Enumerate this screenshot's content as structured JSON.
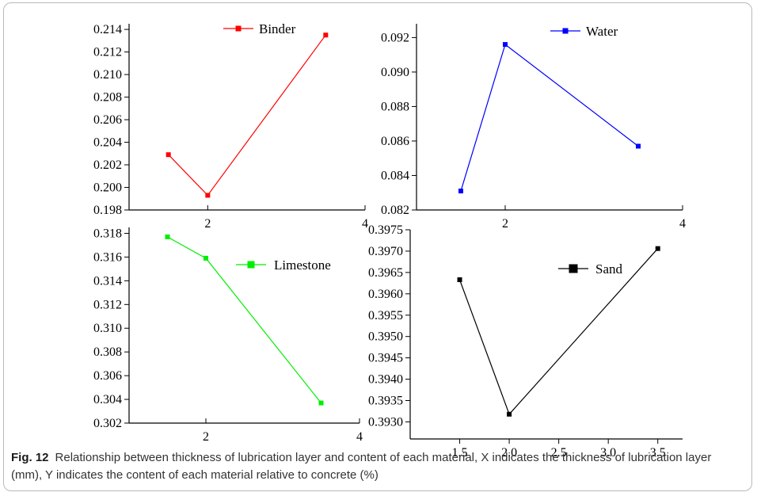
{
  "caption": {
    "label": "Fig. 12",
    "text": "Relationship between thickness of lubrication layer and content of each material, X indicates the thickness of lubrication layer (mm), Y indicates the content of each material relative to concrete (%)"
  },
  "chart_data": [
    {
      "type": "line",
      "title": "",
      "xlabel": "",
      "ylabel": "",
      "color": "#ff0000",
      "xlim": [
        1,
        4
      ],
      "ylim": [
        0.198,
        0.2145
      ],
      "x_ticks": [
        2,
        4
      ],
      "x_tick_labels": [
        "2",
        "4"
      ],
      "y_ticks": [
        0.198,
        0.2,
        0.202,
        0.204,
        0.206,
        0.208,
        0.21,
        0.212,
        0.214
      ],
      "y_tick_labels": [
        "0.198",
        "0.200",
        "0.202",
        "0.204",
        "0.206",
        "0.208",
        "0.210",
        "0.212",
        "0.214"
      ],
      "series": [
        {
          "name": "Binder",
          "x": [
            1.5,
            2.0,
            3.5
          ],
          "values": [
            0.2029,
            0.1993,
            0.2135
          ]
        }
      ],
      "legend_position": "top-center"
    },
    {
      "type": "line",
      "title": "",
      "xlabel": "",
      "ylabel": "",
      "color": "#0000ff",
      "xlim": [
        1,
        4
      ],
      "ylim": [
        0.082,
        0.0928
      ],
      "x_ticks": [
        2,
        4
      ],
      "x_tick_labels": [
        "2",
        "4"
      ],
      "y_ticks": [
        0.082,
        0.084,
        0.086,
        0.088,
        0.09,
        0.092
      ],
      "y_tick_labels": [
        "0.082",
        "0.084",
        "0.086",
        "0.088",
        "0.090",
        "0.092"
      ],
      "series": [
        {
          "name": "Water",
          "x": [
            1.5,
            2.0,
            3.5
          ],
          "values": [
            0.0831,
            0.0916,
            0.0857
          ]
        }
      ],
      "legend_position": "top-right"
    },
    {
      "type": "line",
      "title": "",
      "xlabel": "",
      "ylabel": "",
      "color": "#00ee00",
      "xlim": [
        1,
        4
      ],
      "ylim": [
        0.302,
        0.3185
      ],
      "x_ticks": [
        2,
        4
      ],
      "x_tick_labels": [
        "2",
        "4"
      ],
      "y_ticks": [
        0.302,
        0.304,
        0.306,
        0.308,
        0.31,
        0.312,
        0.314,
        0.316,
        0.318
      ],
      "y_tick_labels": [
        "0.302",
        "0.304",
        "0.306",
        "0.308",
        "0.310",
        "0.312",
        "0.314",
        "0.316",
        "0.318"
      ],
      "series": [
        {
          "name": "Limestone",
          "x": [
            1.5,
            2.0,
            3.5
          ],
          "values": [
            0.3177,
            0.3159,
            0.3037
          ]
        }
      ],
      "legend_position": "top-right"
    },
    {
      "type": "line",
      "title": "",
      "xlabel": "",
      "ylabel": "",
      "color": "#000000",
      "xlim": [
        1.0,
        3.75
      ],
      "ylim": [
        0.3926,
        0.3975
      ],
      "x_ticks": [
        1.5,
        2.0,
        2.5,
        3.0,
        3.5
      ],
      "x_tick_labels": [
        "1.5",
        "2.0",
        "2.5",
        "3.0",
        "3.5"
      ],
      "y_ticks": [
        0.393,
        0.3935,
        0.394,
        0.3945,
        0.395,
        0.3955,
        0.396,
        0.3965,
        0.397,
        0.3975
      ],
      "y_tick_labels": [
        "0.3930",
        "0.3935",
        "0.3940",
        "0.3945",
        "0.3950",
        "0.3955",
        "0.3960",
        "0.3965",
        "0.3970",
        "0.3975"
      ],
      "series": [
        {
          "name": "Sand",
          "x": [
            1.5,
            2.0,
            3.5
          ],
          "values": [
            0.39633,
            0.39318,
            0.39706
          ]
        }
      ],
      "legend_position": "top-right"
    }
  ]
}
